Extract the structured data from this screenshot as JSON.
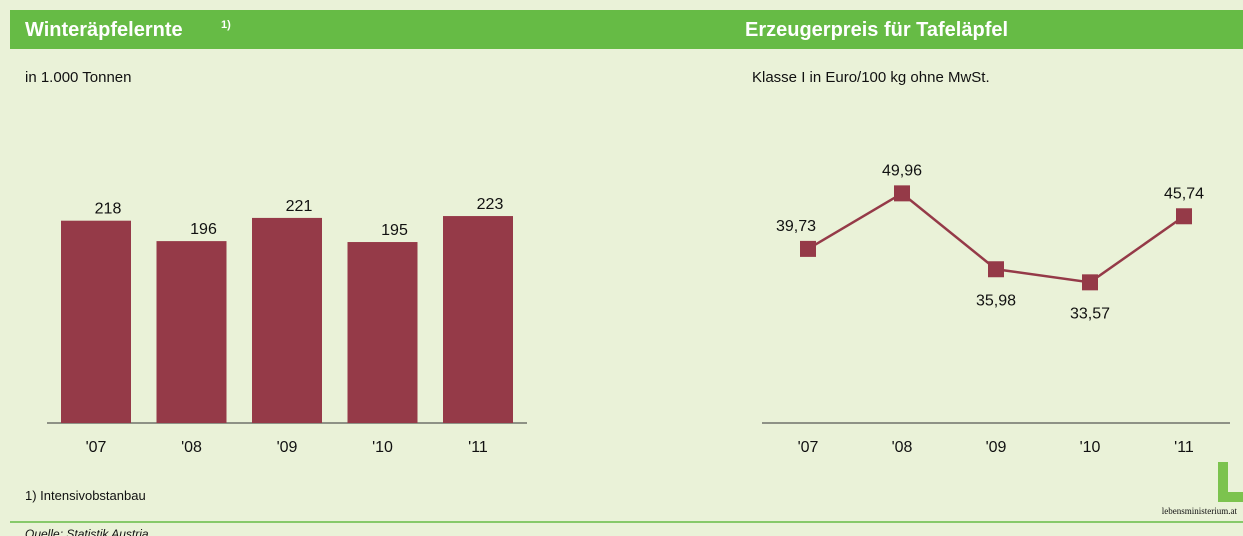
{
  "chart_data": [
    {
      "type": "bar",
      "title": "Winteräpfelernte",
      "title_note": "1)",
      "subtitle": "in 1.000 Tonnen",
      "categories": [
        "'07",
        "'08",
        "'09",
        "'10",
        "'11"
      ],
      "values": [
        218,
        196,
        221,
        195,
        223
      ],
      "color": "#953a48",
      "ylim": [
        0,
        250
      ],
      "footnote": "1) Intensivobstanbau"
    },
    {
      "type": "line",
      "title": "Erzeugerpreis für Tafeläpfel",
      "subtitle": "Klasse I in Euro/100 kg ohne MwSt.",
      "categories": [
        "'07",
        "'08",
        "'09",
        "'10",
        "'11"
      ],
      "values": [
        39.73,
        49.96,
        35.98,
        33.57,
        45.74
      ],
      "value_labels": [
        "39,73",
        "49,96",
        "35,98",
        "33,57",
        "45,74"
      ],
      "color": "#953a48",
      "ylim": [
        20,
        55
      ]
    }
  ],
  "source": "Quelle: Statistik Austria",
  "logo": "lebensministerium.at"
}
